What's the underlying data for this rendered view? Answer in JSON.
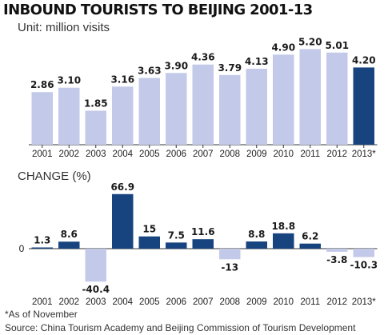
{
  "header": {
    "title": "INBOUND TOURISTS TO BEIJING 2001-13",
    "unit": "Unit: million visits",
    "change_label": "CHANGE (%)"
  },
  "footer": {
    "footnote": "*As of November",
    "source": "Source: China Tourism Academy and Beijing Commission of Tourism Development"
  },
  "colors": {
    "light_bar": "#c3c9e8",
    "dark_bar": "#17447f",
    "axis": "#333333"
  },
  "chart_data": [
    {
      "type": "bar",
      "title": "INBOUND TOURISTS TO BEIJING 2001-13",
      "ylabel": "Unit: million visits",
      "categories": [
        "2001",
        "2002",
        "2003",
        "2004",
        "2005",
        "2006",
        "2007",
        "2008",
        "2009",
        "2010",
        "2011",
        "2012",
        "2013*"
      ],
      "values": [
        2.86,
        3.1,
        1.85,
        3.16,
        3.63,
        3.9,
        4.36,
        3.79,
        4.13,
        4.9,
        5.2,
        5.01,
        4.2
      ],
      "value_labels": [
        "2.86",
        "3.10",
        "1.85",
        "3.16",
        "3.63",
        "3.90",
        "4.36",
        "3.79",
        "4.13",
        "4.90",
        "5.20",
        "5.01",
        "4.20"
      ],
      "highlight": [
        false,
        false,
        false,
        false,
        false,
        false,
        false,
        false,
        false,
        false,
        false,
        false,
        true
      ],
      "ylim": [
        0,
        5.6
      ],
      "grid": false
    },
    {
      "type": "bar",
      "title": "CHANGE (%)",
      "categories": [
        "2001",
        "2002",
        "2003",
        "2004",
        "2005",
        "2006",
        "2007",
        "2008",
        "2009",
        "2010",
        "2011",
        "2012",
        "2013*"
      ],
      "values": [
        1.3,
        8.6,
        -40.4,
        66.9,
        15,
        7.5,
        11.6,
        -13,
        8.8,
        18.8,
        6.2,
        -3.8,
        -10.3
      ],
      "value_labels": [
        "1.3",
        "8.6",
        "-40.4",
        "66.9",
        "15",
        "7.5",
        "11.6",
        "-13",
        "8.8",
        "18.8",
        "6.2",
        "-3.8",
        "-10.3"
      ],
      "y_ticks": [
        "0"
      ],
      "ylim": [
        -45,
        70
      ],
      "grid": false
    }
  ]
}
